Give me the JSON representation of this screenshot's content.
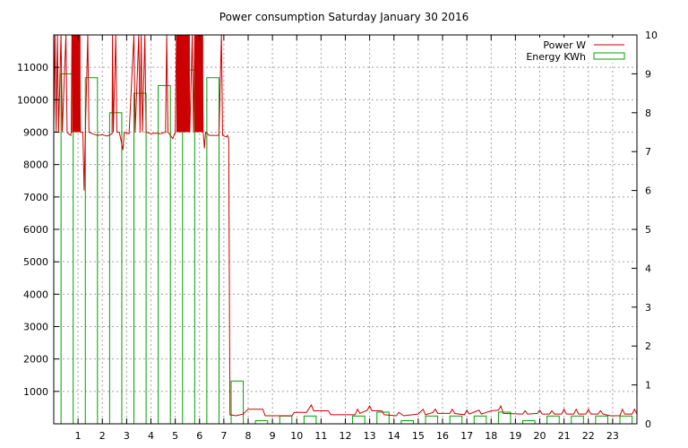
{
  "chart_data": {
    "type": "line",
    "title": "Power consumption Saturday January 30 2016",
    "xlabel": "",
    "ylabel": "",
    "xlim": [
      0,
      24
    ],
    "ylim": [
      0,
      12000
    ],
    "y2lim": [
      0,
      10
    ],
    "grid": true,
    "legend_position": "top-right",
    "x_ticks": [
      1,
      2,
      3,
      4,
      5,
      6,
      7,
      8,
      9,
      10,
      11,
      12,
      13,
      14,
      15,
      16,
      17,
      18,
      19,
      20,
      21,
      22,
      23
    ],
    "y_ticks": [
      1000,
      2000,
      3000,
      4000,
      5000,
      6000,
      7000,
      8000,
      9000,
      10000,
      11000
    ],
    "y2_ticks": [
      0,
      1,
      2,
      3,
      4,
      5,
      6,
      7,
      8,
      9,
      10
    ],
    "series": [
      {
        "name": "Power W",
        "color": "#cc0000",
        "axis": "left",
        "points": [
          [
            0.0,
            9000
          ],
          [
            0.05,
            12000
          ],
          [
            0.1,
            9000
          ],
          [
            0.15,
            12000
          ],
          [
            0.2,
            9000
          ],
          [
            0.3,
            12000
          ],
          [
            0.35,
            9000
          ],
          [
            0.5,
            12000
          ],
          [
            0.55,
            9000
          ],
          [
            0.6,
            8950
          ],
          [
            0.7,
            8900
          ],
          [
            0.72,
            9000
          ],
          [
            0.75,
            12000
          ],
          [
            0.8,
            9000
          ],
          [
            0.85,
            12000
          ],
          [
            0.9,
            9000
          ],
          [
            0.95,
            12000
          ],
          [
            1.0,
            9000
          ],
          [
            1.05,
            12000
          ],
          [
            1.1,
            9000
          ],
          [
            1.2,
            9000
          ],
          [
            1.25,
            7200
          ],
          [
            1.3,
            9000
          ],
          [
            1.4,
            12000
          ],
          [
            1.45,
            9000
          ],
          [
            1.6,
            8950
          ],
          [
            1.8,
            8900
          ],
          [
            2.0,
            8920
          ],
          [
            2.2,
            8880
          ],
          [
            2.4,
            8950
          ],
          [
            2.42,
            12000
          ],
          [
            2.45,
            9000
          ],
          [
            2.55,
            12000
          ],
          [
            2.6,
            9000
          ],
          [
            2.7,
            9000
          ],
          [
            2.85,
            8450
          ],
          [
            2.9,
            9000
          ],
          [
            3.1,
            8950
          ],
          [
            3.3,
            12000
          ],
          [
            3.35,
            9000
          ],
          [
            3.5,
            12000
          ],
          [
            3.55,
            9000
          ],
          [
            3.6,
            12000
          ],
          [
            3.65,
            9000
          ],
          [
            3.75,
            12000
          ],
          [
            3.8,
            9000
          ],
          [
            4.0,
            8950
          ],
          [
            4.2,
            8970
          ],
          [
            4.4,
            8950
          ],
          [
            4.6,
            9000
          ],
          [
            4.65,
            12000
          ],
          [
            4.7,
            9000
          ],
          [
            4.9,
            8800
          ],
          [
            5.0,
            9000
          ],
          [
            5.05,
            12000
          ],
          [
            5.1,
            9000
          ],
          [
            5.15,
            12000
          ],
          [
            5.2,
            9000
          ],
          [
            5.25,
            12000
          ],
          [
            5.3,
            9000
          ],
          [
            5.35,
            12000
          ],
          [
            5.4,
            9000
          ],
          [
            5.45,
            12000
          ],
          [
            5.5,
            9000
          ],
          [
            5.55,
            12000
          ],
          [
            5.6,
            9000
          ],
          [
            5.7,
            12000
          ],
          [
            5.75,
            9000
          ],
          [
            5.8,
            12000
          ],
          [
            5.85,
            9000
          ],
          [
            5.9,
            12000
          ],
          [
            5.95,
            9000
          ],
          [
            6.0,
            12000
          ],
          [
            6.05,
            9000
          ],
          [
            6.1,
            12000
          ],
          [
            6.15,
            9000
          ],
          [
            6.2,
            8500
          ],
          [
            6.25,
            9000
          ],
          [
            6.4,
            8900
          ],
          [
            6.8,
            8900
          ],
          [
            6.9,
            12000
          ],
          [
            6.95,
            8900
          ],
          [
            7.1,
            8850
          ],
          [
            7.15,
            8900
          ],
          [
            7.2,
            8800
          ],
          [
            7.25,
            280
          ],
          [
            7.5,
            250
          ],
          [
            7.8,
            300
          ],
          [
            8.0,
            450
          ],
          [
            8.6,
            450
          ],
          [
            8.7,
            250
          ],
          [
            9.8,
            250
          ],
          [
            9.9,
            350
          ],
          [
            10.4,
            350
          ],
          [
            10.6,
            580
          ],
          [
            10.7,
            400
          ],
          [
            11.3,
            400
          ],
          [
            11.4,
            280
          ],
          [
            12.4,
            280
          ],
          [
            12.5,
            450
          ],
          [
            12.6,
            320
          ],
          [
            12.9,
            420
          ],
          [
            13.0,
            550
          ],
          [
            13.1,
            400
          ],
          [
            13.5,
            400
          ],
          [
            13.6,
            280
          ],
          [
            14.1,
            250
          ],
          [
            14.2,
            350
          ],
          [
            14.4,
            250
          ],
          [
            15.0,
            300
          ],
          [
            15.2,
            450
          ],
          [
            15.3,
            280
          ],
          [
            15.6,
            350
          ],
          [
            15.7,
            450
          ],
          [
            15.8,
            320
          ],
          [
            16.3,
            320
          ],
          [
            16.4,
            450
          ],
          [
            16.5,
            320
          ],
          [
            16.9,
            280
          ],
          [
            17.0,
            420
          ],
          [
            17.1,
            300
          ],
          [
            17.5,
            420
          ],
          [
            17.6,
            300
          ],
          [
            17.8,
            350
          ],
          [
            18.0,
            400
          ],
          [
            18.3,
            420
          ],
          [
            18.4,
            550
          ],
          [
            18.5,
            320
          ],
          [
            19.3,
            300
          ],
          [
            19.4,
            400
          ],
          [
            19.5,
            300
          ],
          [
            19.9,
            320
          ],
          [
            20.0,
            420
          ],
          [
            20.1,
            300
          ],
          [
            20.4,
            300
          ],
          [
            20.5,
            400
          ],
          [
            20.6,
            300
          ],
          [
            20.9,
            300
          ],
          [
            21.0,
            450
          ],
          [
            21.1,
            300
          ],
          [
            21.4,
            300
          ],
          [
            21.5,
            450
          ],
          [
            21.6,
            300
          ],
          [
            21.9,
            300
          ],
          [
            22.0,
            450
          ],
          [
            22.1,
            300
          ],
          [
            22.4,
            300
          ],
          [
            22.5,
            400
          ],
          [
            22.6,
            300
          ],
          [
            22.9,
            250
          ],
          [
            23.3,
            250
          ],
          [
            23.4,
            450
          ],
          [
            23.5,
            300
          ],
          [
            23.8,
            300
          ],
          [
            23.9,
            450
          ],
          [
            24.0,
            300
          ]
        ]
      },
      {
        "name": "Energy KWh",
        "color": "#00a000",
        "axis": "right",
        "bars": [
          {
            "x": 0,
            "value": 9.0
          },
          {
            "x": 1,
            "value": 8.9
          },
          {
            "x": 2,
            "value": 8.0
          },
          {
            "x": 3,
            "value": 8.5
          },
          {
            "x": 4,
            "value": 8.7
          },
          {
            "x": 5,
            "value": 9.1
          },
          {
            "x": 6,
            "value": 8.9
          },
          {
            "x": 7,
            "value": 1.1
          },
          {
            "x": 8,
            "value": 0.08
          },
          {
            "x": 9,
            "value": 0.2
          },
          {
            "x": 10,
            "value": 0.2
          },
          {
            "x": 11,
            "value": 0.0
          },
          {
            "x": 12,
            "value": 0.2
          },
          {
            "x": 13,
            "value": 0.3
          },
          {
            "x": 14,
            "value": 0.08
          },
          {
            "x": 15,
            "value": 0.2
          },
          {
            "x": 16,
            "value": 0.2
          },
          {
            "x": 17,
            "value": 0.2
          },
          {
            "x": 18,
            "value": 0.3
          },
          {
            "x": 19,
            "value": 0.08
          },
          {
            "x": 20,
            "value": 0.2
          },
          {
            "x": 21,
            "value": 0.2
          },
          {
            "x": 22,
            "value": 0.2
          },
          {
            "x": 23,
            "value": 0.2
          }
        ]
      }
    ]
  }
}
